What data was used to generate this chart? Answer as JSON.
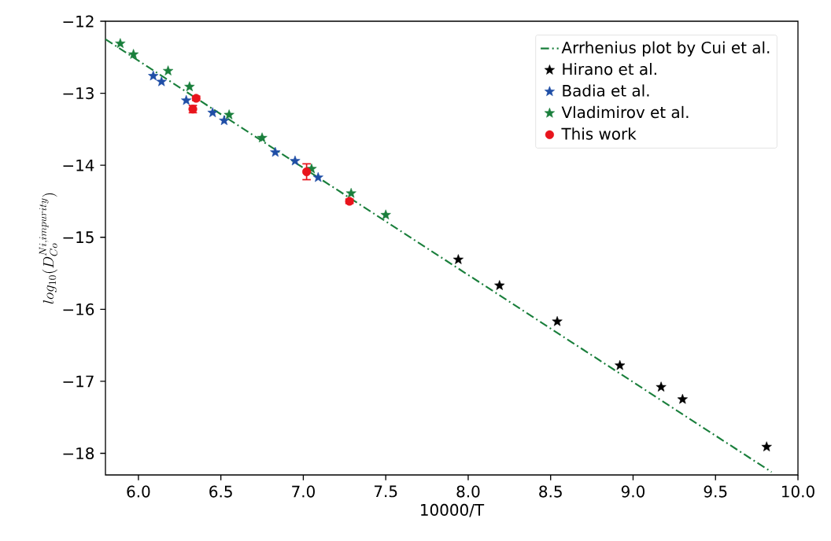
{
  "chart_data": {
    "type": "scatter",
    "xlabel": "10000/T",
    "ylabel": "log_{10}(D_{Co}^{Ni, impurity})",
    "xlim": [
      5.8,
      10.0
    ],
    "ylim": [
      -18.3,
      -12
    ],
    "xticks": [
      {
        "value": 6,
        "label": "6.0"
      },
      6.5,
      {
        "value": 7,
        "label": "7.0"
      },
      7.5,
      {
        "value": 8,
        "label": "8.0"
      },
      8.5,
      {
        "value": 9,
        "label": "9.0"
      },
      9.5,
      {
        "value": 10,
        "label": "10.0"
      }
    ],
    "yticks": [
      {
        "value": -18,
        "label": "−18"
      },
      {
        "value": -17,
        "label": "−17"
      },
      {
        "value": -16,
        "label": "−16"
      },
      {
        "value": -15,
        "label": "−15"
      },
      {
        "value": -14,
        "label": "−14"
      },
      {
        "value": -13,
        "label": "−13"
      },
      {
        "value": -12,
        "label": "−12"
      }
    ],
    "legend": "top right",
    "series": [
      {
        "name": "Arrhenius plot by Cui et al.",
        "type": "line",
        "line_style": "dashdot",
        "marker": "none",
        "color": "#1a7f3c",
        "x": [
          5.8,
          9.84
        ],
        "values": [
          -12.25,
          -18.26
        ]
      },
      {
        "name": "Hirano et al.",
        "marker": "star",
        "color": "#000000",
        "x": [
          7.94,
          8.19,
          8.54,
          8.92,
          9.17,
          9.3,
          9.81
        ],
        "values": [
          -15.31,
          -15.67,
          -16.17,
          -16.78,
          -17.08,
          -17.25,
          -17.91
        ]
      },
      {
        "name": "Badia et al.",
        "marker": "star",
        "color": "#1f4ea6",
        "x": [
          6.09,
          6.14,
          6.29,
          6.45,
          6.52,
          6.83,
          6.95,
          7.09
        ],
        "values": [
          -12.76,
          -12.84,
          -13.1,
          -13.27,
          -13.38,
          -13.82,
          -13.94,
          -14.17
        ]
      },
      {
        "name": "Vladimirov et al.",
        "marker": "star",
        "color": "#1a7f3c",
        "x": [
          5.89,
          5.97,
          6.18,
          6.31,
          6.55,
          6.75,
          7.05,
          7.29,
          7.5
        ],
        "values": [
          -12.31,
          -12.46,
          -12.69,
          -12.91,
          -13.3,
          -13.62,
          -14.05,
          -14.39,
          -14.69
        ]
      },
      {
        "name": "This work",
        "marker": "circle",
        "color": "#e8141c",
        "x": [
          6.35,
          6.33,
          7.02,
          7.28
        ],
        "values": [
          -13.07,
          -13.22,
          -14.09,
          -14.5
        ],
        "errors": [
          0.03,
          0.05,
          0.11,
          0.03
        ]
      }
    ]
  }
}
